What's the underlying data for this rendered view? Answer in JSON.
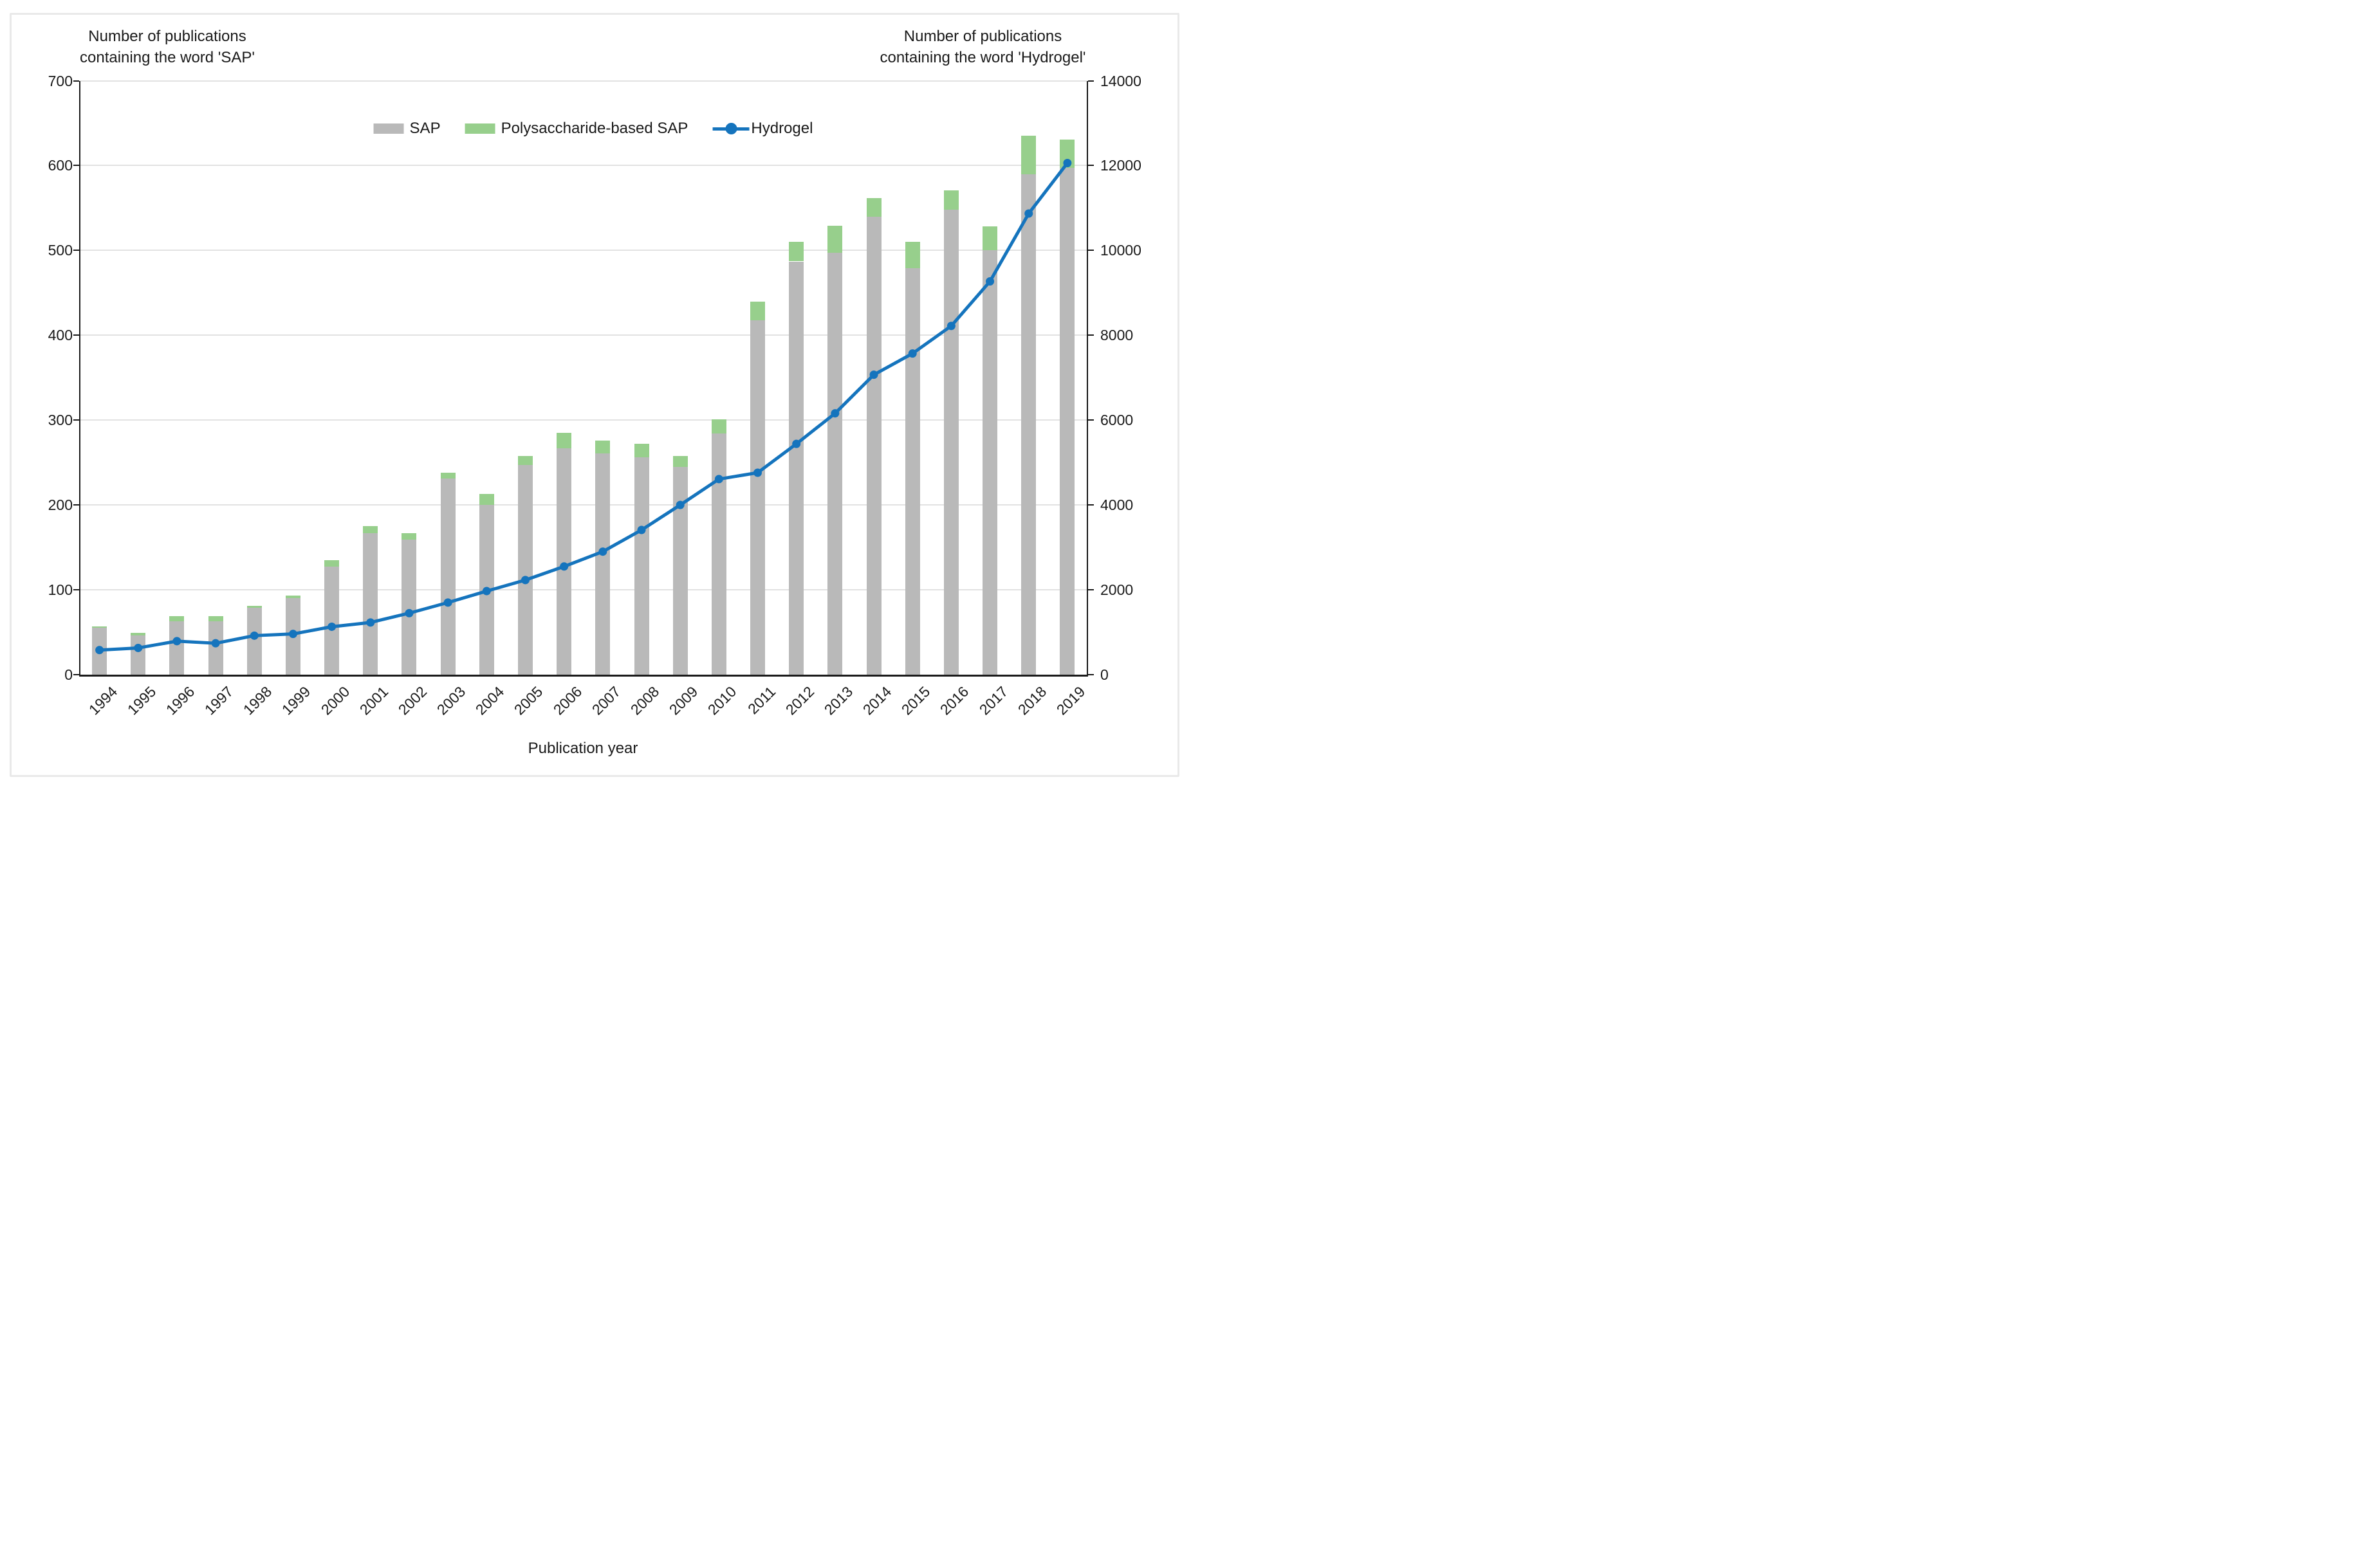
{
  "titles": {
    "left_axis": [
      "Number of publications",
      "containing the word 'SAP'"
    ],
    "right_axis": [
      "Number of publications",
      "containing the word 'Hydrogel'"
    ],
    "x_axis": "Publication year"
  },
  "legend": {
    "items": [
      {
        "label": "SAP",
        "marker": "swatch",
        "color_key": "sap"
      },
      {
        "label": "Polysaccharide-based SAP",
        "marker": "swatch",
        "color_key": "poly"
      },
      {
        "label": "Hydrogel",
        "marker": "line-dot",
        "color_key": "hydrogel"
      }
    ]
  },
  "colors": {
    "sap": "#b9b9b9",
    "poly": "#97cf8c",
    "hydrogel": "#1574bd",
    "grid": "#e2e2e2",
    "axis": "#1a1a1a",
    "text": "#1a1a1a",
    "border": "#e9e9e9",
    "background": "#ffffff"
  },
  "chart_data": {
    "type": "combo: stacked bar (left axis) + line (right axis)",
    "title": "",
    "xlabel": "Publication year",
    "categories": [
      1994,
      1995,
      1996,
      1997,
      1998,
      1999,
      2000,
      2001,
      2002,
      2003,
      2004,
      2005,
      2006,
      2007,
      2008,
      2009,
      2010,
      2011,
      2012,
      2013,
      2014,
      2015,
      2016,
      2017,
      2018,
      2019
    ],
    "series": [
      {
        "name": "SAP",
        "type": "bar",
        "stack": "sap-stack",
        "axis": "left",
        "values": [
          55,
          46,
          63,
          63,
          79,
          90,
          127,
          167,
          159,
          231,
          200,
          247,
          267,
          261,
          256,
          245,
          284,
          418,
          487,
          497,
          540,
          479,
          548,
          500,
          590,
          597
        ]
      },
      {
        "name": "Polysaccharide-based SAP",
        "type": "bar",
        "stack": "sap-stack",
        "axis": "left",
        "values": [
          2,
          3,
          6,
          6,
          2,
          3,
          8,
          8,
          8,
          7,
          13,
          11,
          18,
          15,
          16,
          13,
          17,
          22,
          23,
          32,
          22,
          31,
          23,
          28,
          45,
          34
        ]
      },
      {
        "name": "Hydrogel",
        "type": "line",
        "axis": "right",
        "values": [
          580,
          630,
          790,
          740,
          920,
          960,
          1130,
          1230,
          1450,
          1700,
          1970,
          2230,
          2550,
          2900,
          3410,
          4000,
          4610,
          4760,
          5440,
          6160,
          7070,
          7570,
          8220,
          9270,
          10870,
          12060
        ]
      }
    ],
    "left_axis": {
      "label": "Number of publications containing the word 'SAP'",
      "min": 0,
      "max": 700,
      "step": 100,
      "tick_labels": [
        "0",
        "100",
        "200",
        "300",
        "400",
        "500",
        "600",
        "700"
      ]
    },
    "right_axis": {
      "label": "Number of publications containing the word 'Hydrogel'",
      "min": 0,
      "max": 14000,
      "step": 2000,
      "tick_labels": [
        "0",
        "2000",
        "4000",
        "6000",
        "8000",
        "10000",
        "12000",
        "14000"
      ]
    },
    "grid": "horizontal",
    "legend_position": "top-center-inside"
  }
}
